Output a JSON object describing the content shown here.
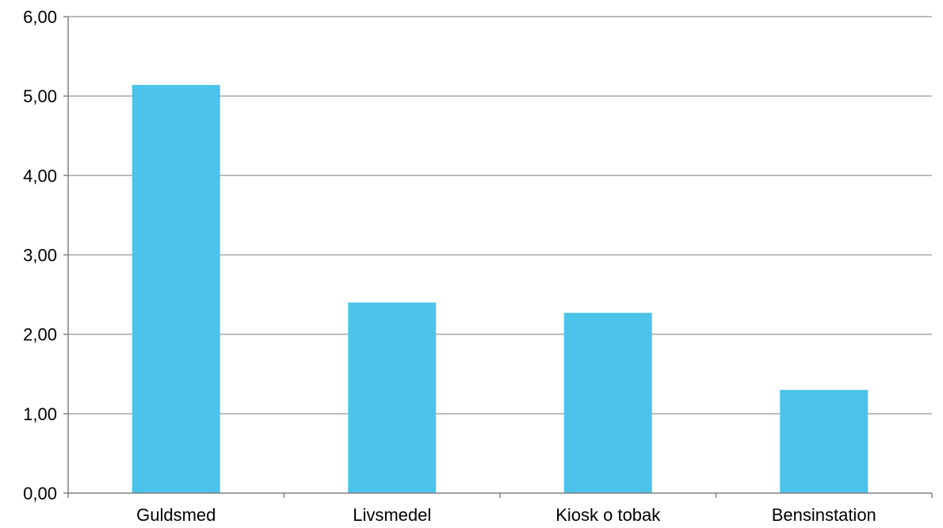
{
  "chart_data": {
    "type": "bar",
    "categories": [
      "Guldsmed",
      "Livsmedel",
      "Kiosk o tobak",
      "Bensinstation"
    ],
    "values": [
      5.14,
      2.4,
      2.27,
      1.3
    ],
    "y_ticks": [
      "0,00",
      "1,00",
      "2,00",
      "3,00",
      "4,00",
      "5,00",
      "6,00"
    ],
    "ylim": [
      0,
      6
    ],
    "title": "",
    "xlabel": "",
    "ylabel": "",
    "grid": true,
    "legend": "none",
    "bar_color": "#4BC3EA",
    "grid_color": "#A6A6A6",
    "axis_color": "#808080"
  }
}
